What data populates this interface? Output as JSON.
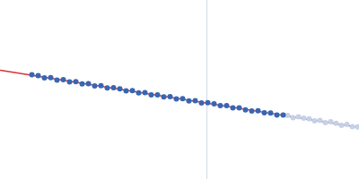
{
  "chart_data": {
    "type": "scatter",
    "xlim": [
      0,
      400
    ],
    "ylim": [
      0,
      200
    ],
    "tick_labels": false,
    "grid": false,
    "reference_lines": [
      {
        "x": 230,
        "color": "#d3dae8"
      }
    ],
    "series": [
      {
        "type": "line",
        "color": "#d6303a",
        "x": [
          0,
          400
        ],
        "values": [
          122,
          58
        ]
      },
      {
        "type": "scatter",
        "color": "#c5d1e8",
        "x": [
          320,
          326,
          332,
          338,
          344,
          350,
          356,
          362,
          368,
          374,
          380,
          386,
          392,
          398
        ],
        "values": [
          71.5,
          69,
          70,
          68.5,
          67.8,
          65.5,
          66,
          63.5,
          64.5,
          62.8,
          60.5,
          61.5,
          59,
          58.8
        ]
      },
      {
        "type": "scatter",
        "color": "#3766b3",
        "x": [
          35,
          42,
          49,
          56,
          63,
          70,
          77,
          84,
          91,
          98,
          105,
          112,
          119,
          126,
          133,
          140,
          147,
          154,
          161,
          168,
          175,
          182,
          189,
          196,
          203,
          210,
          217,
          224,
          231,
          238,
          245,
          252,
          259,
          266,
          273,
          280,
          287,
          294,
          301,
          308,
          315
        ],
        "values": [
          117,
          116,
          113.5,
          113.8,
          111,
          111.5,
          109,
          109.2,
          106.8,
          107,
          104.5,
          104.8,
          102.2,
          102.5,
          101.3,
          99,
          99.2,
          96.8,
          97,
          94.5,
          94.6,
          92.2,
          92.4,
          90,
          90.2,
          87.8,
          88,
          85.6,
          85.7,
          84.5,
          82.4,
          82.5,
          80,
          80,
          77.8,
          76.5,
          76.8,
          74.4,
          74.2,
          72.1,
          72
        ]
      }
    ]
  }
}
